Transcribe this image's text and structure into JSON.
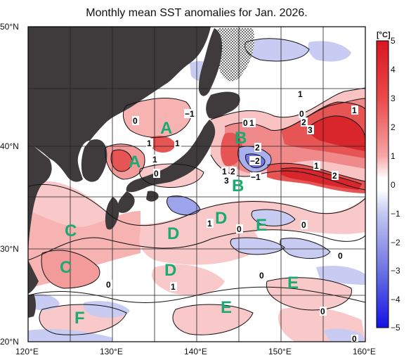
{
  "title": "Monthly mean SST anomalies for Jan. 2026.",
  "lat_labels": [
    "50°N",
    "40°N",
    "30°N",
    "20°N"
  ],
  "lon_labels": [
    "120°E",
    "130°E",
    "140°E",
    "150°E",
    "160°E"
  ],
  "colorbar": {
    "unit": "[°C]",
    "ticks": [
      "5",
      "4",
      "3",
      "2",
      "1",
      "0",
      "−1",
      "−2",
      "−3",
      "−4",
      "−5"
    ],
    "colors": {
      "warm_strong": "#e0242b",
      "warm_mid": "#f07070",
      "warm_light": "#f9c6c6",
      "neutral": "#ffffff",
      "cool_light": "#c8cbf2",
      "cool_mid": "#7d83e6",
      "cool_strong": "#1a1ae6",
      "land": "#3f3b3c"
    }
  },
  "regions": {
    "a1": "A",
    "a2": "A",
    "b1": "B",
    "b2": "B",
    "c1": "C",
    "c2": "C",
    "d1": "D",
    "d2": "D",
    "d3": "D",
    "e1": "E",
    "e2": "E",
    "e3": "E",
    "f1": "F"
  },
  "contour_labels": {
    "l1": "1",
    "l2": "0",
    "l3": "−1",
    "l4": "1",
    "l5": "1",
    "l6": "1",
    "l7": "0",
    "l8": "1",
    "l9": "0",
    "l10": "0",
    "l11": "1",
    "l12": "2",
    "l13": "2",
    "l14": "−2",
    "l15": "−1",
    "l16": "1",
    "l17": "2",
    "l18": "3",
    "l19": "1",
    "l20": "3",
    "l21": "2",
    "l22": "1",
    "l23": "1",
    "l24": "0",
    "l25": "0",
    "l26": "0",
    "l27": "0",
    "l28": "1",
    "l29": "0",
    "l30": "0",
    "l31": "0"
  }
}
